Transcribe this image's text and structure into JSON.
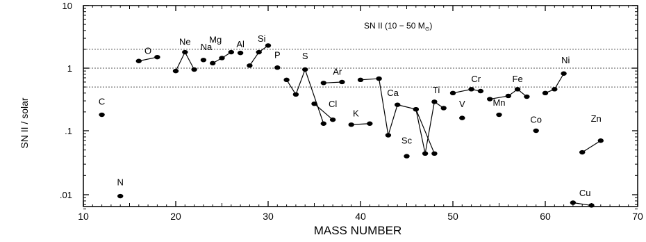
{
  "chart_data": {
    "type": "scatter",
    "annotation": {
      "prefix": "SN II (10 − 50 M",
      "symbol": "⊙",
      "suffix": ")"
    },
    "xlabel": "MASS NUMBER",
    "ylabel": "SN II / solar",
    "xlim": [
      10,
      70
    ],
    "ylim": [
      0.006,
      10
    ],
    "yscale": "log",
    "x_ticks": [
      10,
      20,
      30,
      40,
      50,
      60,
      70
    ],
    "y_ticks": [
      {
        "value": 0.01,
        "label": ".01"
      },
      {
        "value": 0.1,
        "label": ".1"
      },
      {
        "value": 1,
        "label": "1"
      },
      {
        "value": 10,
        "label": "10"
      }
    ],
    "reference_lines": [
      2,
      1,
      0.5
    ],
    "elements": [
      {
        "name": "C",
        "points": [
          [
            12,
            0.18
          ]
        ]
      },
      {
        "name": "N",
        "points": [
          [
            14,
            0.0095
          ]
        ]
      },
      {
        "name": "O",
        "points": [
          [
            16,
            1.3
          ],
          [
            18,
            1.5
          ]
        ]
      },
      {
        "name": "Ne",
        "points": [
          [
            20,
            0.9
          ],
          [
            21,
            1.8
          ],
          [
            22,
            0.95
          ]
        ]
      },
      {
        "name": "Na",
        "points": [
          [
            23,
            1.35
          ]
        ]
      },
      {
        "name": "Mg",
        "points": [
          [
            24,
            1.2
          ],
          [
            25,
            1.45
          ],
          [
            26,
            1.8
          ]
        ]
      },
      {
        "name": "Al",
        "points": [
          [
            27,
            1.75
          ]
        ]
      },
      {
        "name": "Si",
        "points": [
          [
            28,
            1.1
          ],
          [
            29,
            1.8
          ],
          [
            30,
            2.3
          ]
        ]
      },
      {
        "name": "P",
        "points": [
          [
            31,
            1.02
          ]
        ]
      },
      {
        "name": "S",
        "points": [
          [
            32,
            0.65
          ],
          [
            33,
            0.38
          ],
          [
            34,
            0.95
          ],
          [
            36,
            0.13
          ]
        ]
      },
      {
        "name": "Cl",
        "points": [
          [
            35,
            0.27
          ],
          [
            37,
            0.15
          ]
        ]
      },
      {
        "name": "Ar",
        "points": [
          [
            36,
            0.58
          ],
          [
            38,
            0.6
          ]
        ]
      },
      {
        "name": "K",
        "points": [
          [
            39,
            0.125
          ],
          [
            41,
            0.13
          ]
        ]
      },
      {
        "name": "Ca",
        "points": [
          [
            40,
            0.65
          ],
          [
            42,
            0.68
          ],
          [
            43,
            0.085
          ],
          [
            44,
            0.26
          ],
          [
            46,
            0.22
          ],
          [
            48,
            0.044
          ]
        ]
      },
      {
        "name": "Sc",
        "points": [
          [
            45,
            0.04
          ]
        ]
      },
      {
        "name": "Ti",
        "points": [
          [
            46,
            0.22
          ],
          [
            47,
            0.044
          ],
          [
            48,
            0.29
          ],
          [
            49,
            0.23
          ]
        ]
      },
      {
        "name": "V",
        "points": [
          [
            51,
            0.16
          ]
        ]
      },
      {
        "name": "Cr",
        "points": [
          [
            50,
            0.4
          ],
          [
            52,
            0.46
          ],
          [
            53,
            0.43
          ]
        ]
      },
      {
        "name": "Mn",
        "points": [
          [
            55,
            0.18
          ]
        ]
      },
      {
        "name": "Fe",
        "points": [
          [
            54,
            0.32
          ],
          [
            56,
            0.36
          ],
          [
            57,
            0.46
          ],
          [
            58,
            0.35
          ]
        ]
      },
      {
        "name": "Co",
        "points": [
          [
            59,
            0.1
          ]
        ]
      },
      {
        "name": "Ni",
        "points": [
          [
            60,
            0.4
          ],
          [
            61,
            0.46
          ],
          [
            62,
            0.82
          ]
        ]
      },
      {
        "name": "Cu",
        "points": [
          [
            63,
            0.0075
          ],
          [
            65,
            0.0068
          ]
        ]
      },
      {
        "name": "Zn",
        "points": [
          [
            64,
            0.046
          ],
          [
            66,
            0.07
          ]
        ]
      }
    ]
  }
}
